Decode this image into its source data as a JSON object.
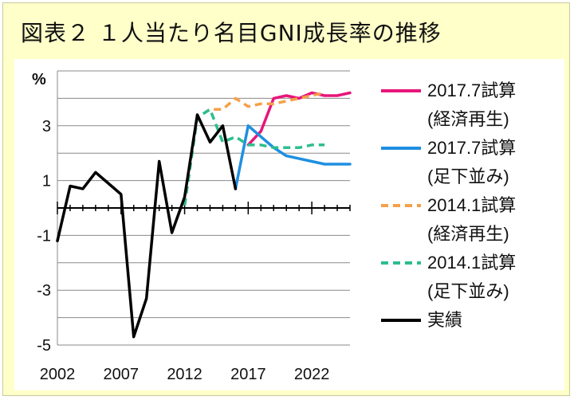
{
  "title": "図表２ １人当たり名目GNI成長率の推移",
  "chart_data": {
    "type": "line",
    "ylabel": "%",
    "ylim": [
      -5,
      5
    ],
    "xlim": [
      2002,
      2025
    ],
    "y_ticks": [
      -5,
      -3,
      -1,
      1,
      3
    ],
    "x_ticks": [
      2002,
      2007,
      2012,
      2017,
      2022
    ],
    "legend_position": "right",
    "gridlines": true,
    "series": [
      {
        "name": "2017.7試算(経済再生)",
        "name_lines": [
          "2017.7試算",
          "(経済再生)"
        ],
        "color": "#e8157a",
        "dash": "solid",
        "x": [
          2017,
          2018,
          2019,
          2020,
          2021,
          2022,
          2023,
          2024,
          2025
        ],
        "y": [
          2.3,
          2.8,
          4.0,
          4.1,
          4.0,
          4.2,
          4.1,
          4.1,
          4.2
        ]
      },
      {
        "name": "2017.7試算(足下並み)",
        "name_lines": [
          "2017.7試算",
          "(足下並み)"
        ],
        "color": "#1f8fe0",
        "dash": "solid",
        "x": [
          2016,
          2017,
          2018,
          2019,
          2020,
          2021,
          2022,
          2023,
          2024,
          2025
        ],
        "y": [
          0.7,
          3.0,
          2.6,
          2.2,
          1.9,
          1.8,
          1.7,
          1.6,
          1.6,
          1.6
        ]
      },
      {
        "name": "2014.1試算(経済再生)",
        "name_lines": [
          "2014.1試算",
          "(経済再生)"
        ],
        "color": "#f5a04a",
        "dash": "dashed",
        "x": [
          2012,
          2013,
          2014,
          2015,
          2016,
          2017,
          2018,
          2019,
          2020,
          2021,
          2022,
          2023
        ],
        "y": [
          0.1,
          3.3,
          3.6,
          3.6,
          4.0,
          3.7,
          3.8,
          3.8,
          3.9,
          4.0,
          4.1,
          4.2
        ]
      },
      {
        "name": "2014.1試算(足下並み)",
        "name_lines": [
          "2014.1試算",
          "(足下並み)"
        ],
        "color": "#2dbd8f",
        "dash": "dashed",
        "x": [
          2012,
          2013,
          2014,
          2015,
          2016,
          2017,
          2018,
          2019,
          2020,
          2021,
          2022,
          2023
        ],
        "y": [
          0.1,
          3.3,
          3.6,
          2.4,
          2.6,
          2.3,
          2.3,
          2.2,
          2.2,
          2.2,
          2.3,
          2.3
        ]
      },
      {
        "name": "実績",
        "name_lines": [
          "実績"
        ],
        "color": "#000000",
        "dash": "solid",
        "x": [
          2002,
          2003,
          2004,
          2005,
          2006,
          2007,
          2008,
          2009,
          2010,
          2011,
          2012,
          2013,
          2014,
          2015,
          2016
        ],
        "y": [
          -1.2,
          0.8,
          0.7,
          1.3,
          0.9,
          0.5,
          -4.7,
          -3.3,
          1.7,
          -0.9,
          0.4,
          3.4,
          2.4,
          3.0,
          0.7
        ]
      }
    ]
  }
}
